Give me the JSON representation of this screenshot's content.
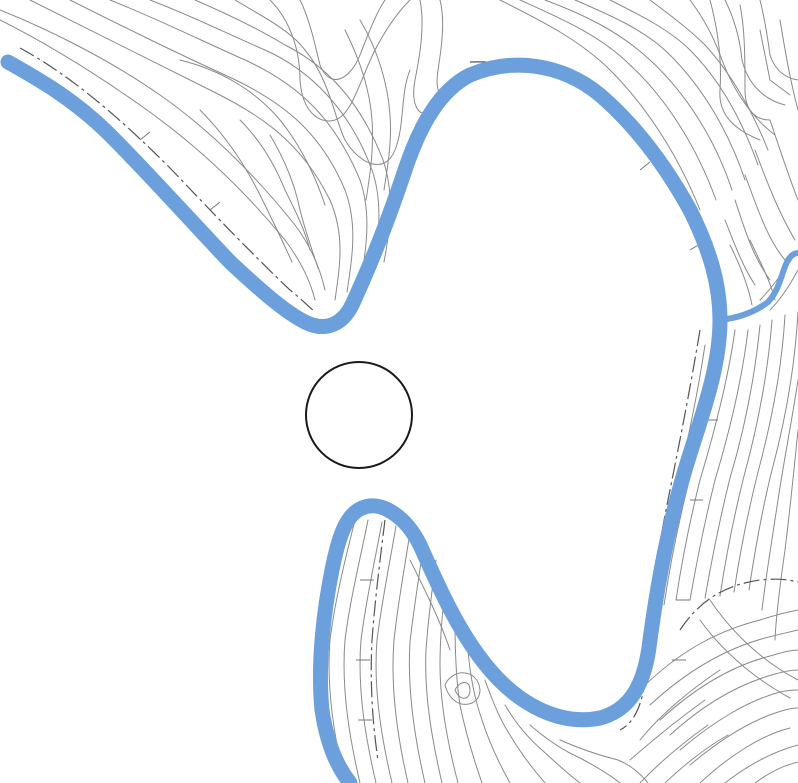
{
  "map": {
    "kind": "topographic-contour-map",
    "background_color": "#ffffff",
    "contour_color": "#8a8a8a",
    "river_color": "#6ca0dc",
    "tributary_color": "#6ca0dc",
    "railway_color": "#111111",
    "marker_color": "#1a1a1a",
    "features": [
      "meandering-river",
      "tributary-stream",
      "contour-lines",
      "railway-line",
      "road-lines",
      "circle-marker"
    ]
  }
}
